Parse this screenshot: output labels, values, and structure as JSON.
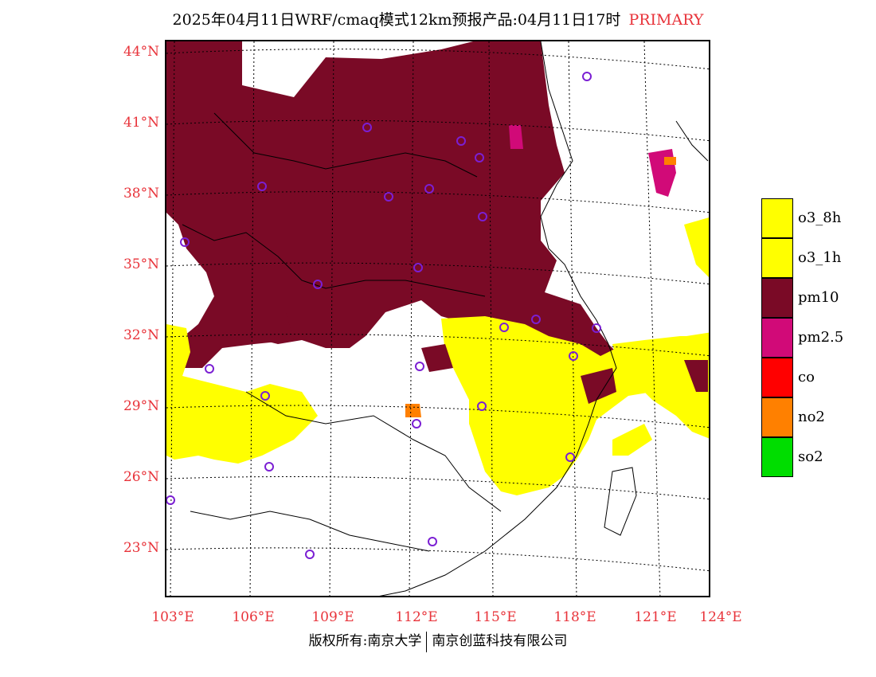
{
  "title": {
    "text": "2025年04月11日WRF/cmaq模式12km预报产品:04月11日17时",
    "tag": "PRIMARY"
  },
  "map": {
    "lat_labels": [
      "44°N",
      "41°N",
      "38°N",
      "35°N",
      "32°N",
      "29°N",
      "26°N",
      "23°N"
    ],
    "lon_labels": [
      "103°E",
      "106°E",
      "109°E",
      "112°E",
      "115°E",
      "118°E",
      "121°E",
      "124°E"
    ]
  },
  "legend": [
    {
      "label": "o3_8h",
      "color": "#ffff00"
    },
    {
      "label": "o3_1h",
      "color": "#ffff00"
    },
    {
      "label": "pm10",
      "color": "#7a0a26"
    },
    {
      "label": "pm2.5",
      "color": "#d10a78"
    },
    {
      "label": "co",
      "color": "#ff0000"
    },
    {
      "label": "no2",
      "color": "#ff8000"
    },
    {
      "label": "so2",
      "color": "#00dd00"
    }
  ],
  "footer": {
    "left": "版权所有:南京大学",
    "right": "南京创蓝科技有限公司"
  }
}
